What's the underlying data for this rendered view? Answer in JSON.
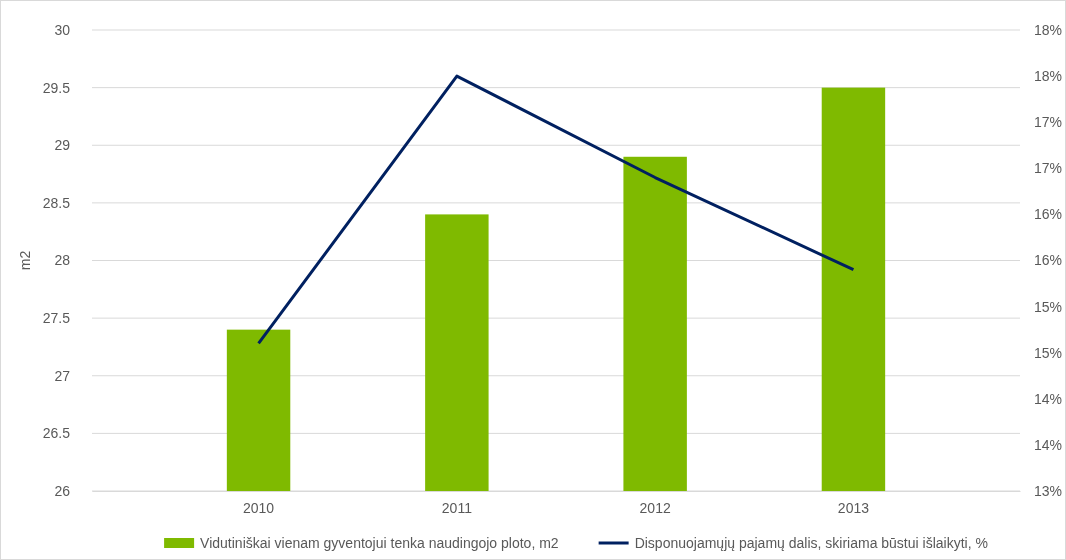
{
  "chart_data": {
    "type": "bar",
    "categories": [
      "2010",
      "2011",
      "2012",
      "2013"
    ],
    "ylabel": "m2",
    "series": [
      {
        "name": "Vidutiniškai vienam gyventojui tenka naudingojo ploto, m2",
        "color": "#7fba00",
        "values": [
          27.4,
          28.4,
          28.9,
          29.5
        ]
      },
      {
        "name": "Disponuojamųjų pajamų dalis, skiriama būstui išlaikyti, %",
        "type": "line",
        "axis": "y2",
        "color": "#002060",
        "values": [
          14.6,
          17.5,
          16.4,
          15.4
        ]
      }
    ],
    "ylim": [
      26,
      30
    ],
    "yticks": [
      26,
      26.5,
      27,
      27.5,
      28,
      28.5,
      29,
      29.5,
      30
    ],
    "y2lim": [
      13,
      18
    ],
    "y2ticks": [
      {
        "value": 13,
        "label": "13%"
      },
      {
        "value": 13.5,
        "label": "14%"
      },
      {
        "value": 14,
        "label": "14%"
      },
      {
        "value": 14.5,
        "label": "15%"
      },
      {
        "value": 15,
        "label": "15%"
      },
      {
        "value": 15.5,
        "label": "16%"
      },
      {
        "value": 16,
        "label": "16%"
      },
      {
        "value": 16.5,
        "label": "17%"
      },
      {
        "value": 17,
        "label": "17%"
      },
      {
        "value": 17.5,
        "label": "18%"
      },
      {
        "value": 18,
        "label": "18%"
      }
    ],
    "grid": "y",
    "legend": "bottom",
    "marker": "none"
  }
}
